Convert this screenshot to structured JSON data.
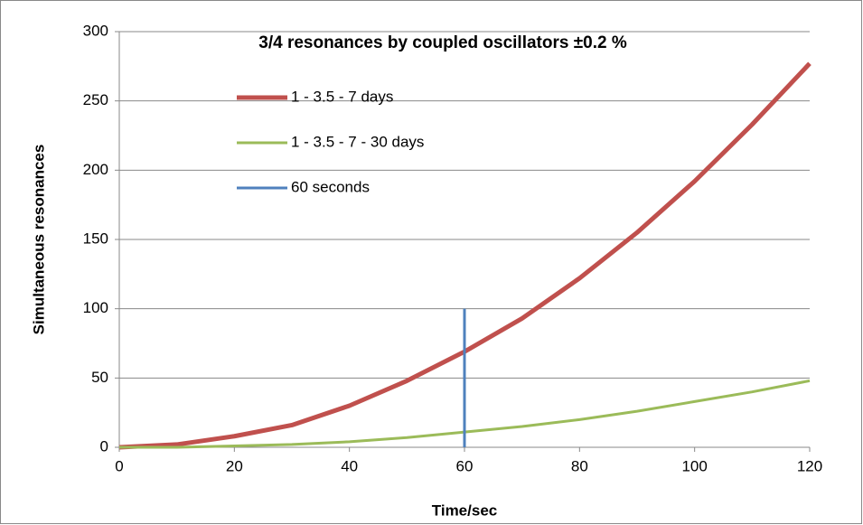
{
  "chart_data": {
    "type": "line",
    "title": "3/4 resonances by coupled oscillators ±0.2 %",
    "x_label": "Time/sec",
    "y_label": "Simultaneous resonances",
    "series": [
      {
        "name": "1 - 3.5 - 7 days",
        "color": "#c0504d",
        "x": [
          0,
          10,
          20,
          30,
          40,
          50,
          60,
          70,
          80,
          90,
          100,
          110,
          120
        ],
        "values": [
          0,
          2,
          8,
          16,
          30,
          48,
          69,
          93,
          122,
          155,
          192,
          233,
          277
        ]
      },
      {
        "name": "1 - 3.5 - 7 - 30 days",
        "color": "#9bbb59",
        "x": [
          0,
          10,
          20,
          30,
          40,
          50,
          60,
          70,
          80,
          90,
          100,
          110,
          120
        ],
        "values": [
          0,
          0,
          1,
          2,
          4,
          7,
          11,
          15,
          20,
          26,
          33,
          40,
          48
        ]
      },
      {
        "name": "60 seconds",
        "color": "#4f81bd",
        "x": [
          60,
          60
        ],
        "values": [
          0,
          100
        ]
      }
    ],
    "xlim": [
      0,
      120
    ],
    "xticks": [
      0,
      20,
      40,
      60,
      80,
      100,
      120
    ],
    "ylim": [
      0,
      300
    ],
    "yticks": [
      0,
      50,
      100,
      150,
      200,
      250,
      300
    ],
    "grid": true,
    "legend": "upper left"
  }
}
